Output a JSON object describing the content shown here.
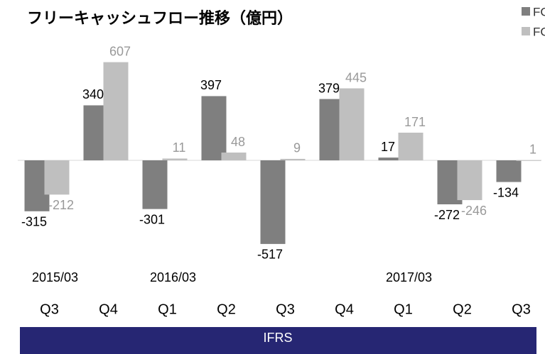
{
  "chart_data": {
    "type": "bar",
    "title": "フリーキャッシュフロー推移（億円）",
    "categories": [
      "Q3",
      "Q4",
      "Q1",
      "Q2",
      "Q3",
      "Q4",
      "Q1",
      "Q2",
      "Q3"
    ],
    "period_labels": [
      "2015/03",
      null,
      "2016/03",
      null,
      null,
      null,
      "2017/03",
      null,
      null
    ],
    "series": [
      {
        "name": "FCF",
        "color": "#7f7f7f",
        "label_color": "#000000",
        "values": [
          -315,
          340,
          -301,
          397,
          -517,
          379,
          17,
          -272,
          -134
        ]
      },
      {
        "name": "FCEF",
        "color": "#bfbfbf",
        "label_color": "#999999",
        "values": [
          -212,
          607,
          11,
          48,
          9,
          445,
          171,
          -246,
          1
        ]
      }
    ],
    "ylim": [
      -700,
      700
    ],
    "legend": "top-right",
    "banner": "IFRS",
    "banner_color": "#262673"
  }
}
